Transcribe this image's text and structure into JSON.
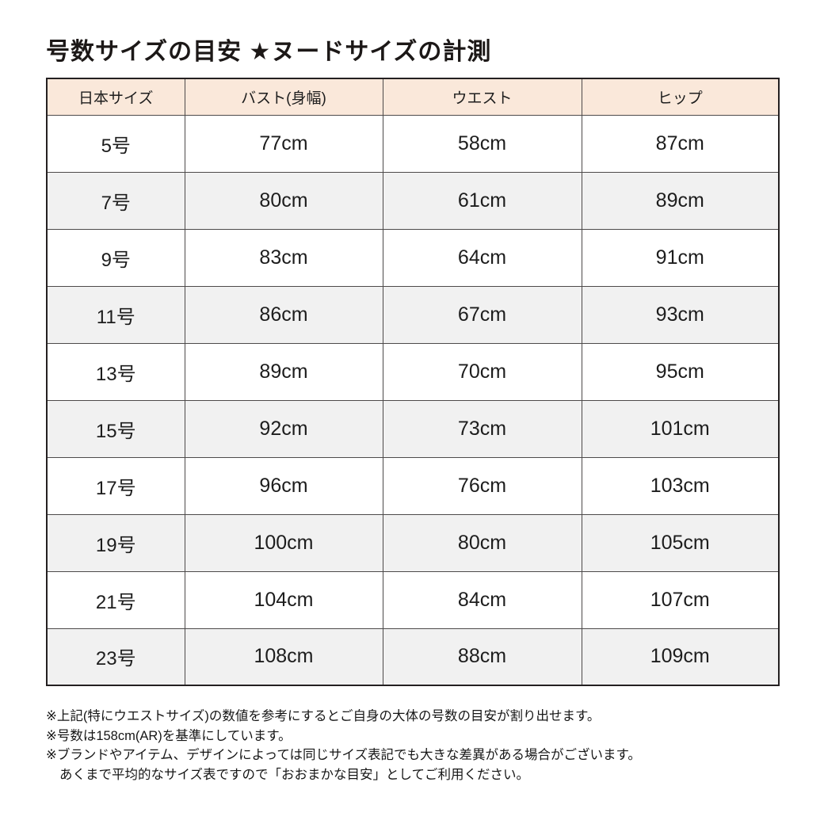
{
  "page": {
    "title": "号数サイズの目安 ★ヌードサイズの計測"
  },
  "size_table": {
    "columns": [
      "日本サイズ",
      "バスト(身幅)",
      "ウエスト",
      "ヒップ"
    ],
    "rows": [
      {
        "size": "5号",
        "bust": "77cm",
        "waist": "58cm",
        "hip": "87cm"
      },
      {
        "size": "7号",
        "bust": "80cm",
        "waist": "61cm",
        "hip": "89cm"
      },
      {
        "size": "9号",
        "bust": "83cm",
        "waist": "64cm",
        "hip": "91cm"
      },
      {
        "size": "11号",
        "bust": "86cm",
        "waist": "67cm",
        "hip": "93cm"
      },
      {
        "size": "13号",
        "bust": "89cm",
        "waist": "70cm",
        "hip": "95cm"
      },
      {
        "size": "15号",
        "bust": "92cm",
        "waist": "73cm",
        "hip": "101cm"
      },
      {
        "size": "17号",
        "bust": "96cm",
        "waist": "76cm",
        "hip": "103cm"
      },
      {
        "size": "19号",
        "bust": "100cm",
        "waist": "80cm",
        "hip": "105cm"
      },
      {
        "size": "21号",
        "bust": "104cm",
        "waist": "84cm",
        "hip": "107cm"
      },
      {
        "size": "23号",
        "bust": "108cm",
        "waist": "88cm",
        "hip": "109cm"
      }
    ]
  },
  "notes": [
    "※上記(特にウエストサイズ)の数値を参考にするとご自身の大体の号数の目安が割り出せます。",
    "※号数は158cm(AR)を基準にしています。",
    "※ブランドやアイテム、デザインによっては同じサイズ表記でも大きな差異がある場合がございます。",
    "あくまで平均的なサイズ表ですので「おおまかな目安」としてご利用ください。"
  ],
  "colors": {
    "header_bg": "#fae8da",
    "stripe_bg": "#f1f1f1",
    "row_bg": "#ffffff",
    "outer_border": "#242021",
    "inner_border": "#4d4a4a",
    "text": "#1d1d1d"
  }
}
